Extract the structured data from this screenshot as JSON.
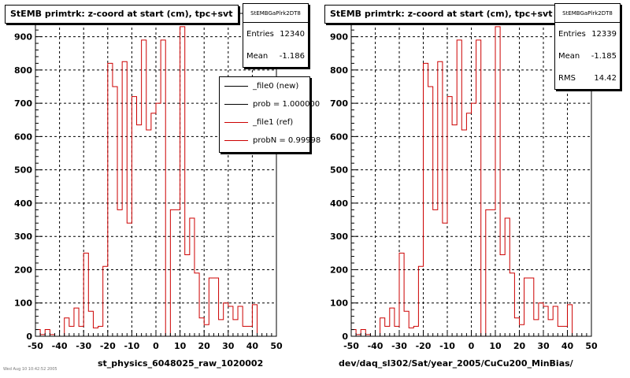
{
  "panels": [
    {
      "title": "StEMB primtrk: z-coord at start (cm), tpc+svt",
      "xlabel": "st_physics_6048025_raw_1020002",
      "stats": {
        "name": "StEMBGaPlrk2DT8",
        "rows": [
          {
            "label": "Entries",
            "value": "12340"
          },
          {
            "label": "Mean",
            "value": "-1.186"
          }
        ]
      },
      "legend": [
        {
          "label": "_file0 (new)",
          "color": "#000000"
        },
        {
          "label": "prob = 1.000000",
          "color": "#000000"
        },
        {
          "label": "_file1 (ref)",
          "color": "#cc0000"
        },
        {
          "label": "probN = 0.99998",
          "color": "#cc0000"
        }
      ]
    },
    {
      "title": "StEMB primtrk: z-coord at start (cm), tpc+svt",
      "xlabel": "dev/daq_sl302/Sat/year_2005/CuCu200_MinBias/",
      "stats": {
        "name": "StEMBGaPlrk2DT8",
        "rows": [
          {
            "label": "Entries",
            "value": "12339"
          },
          {
            "label": "Mean",
            "value": "-1.185"
          },
          {
            "label": "RMS",
            "value": "14.42"
          }
        ]
      },
      "legend": []
    }
  ],
  "footer_note": "Wed Aug 10 10:42:52 2005",
  "chart_data": [
    {
      "type": "histogram",
      "title": "StEMB primtrk: z-coord at start (cm), tpc+svt",
      "xlabel": "st_physics_6048025_raw_1020002",
      "xlim": [
        -50,
        50
      ],
      "ylim": [
        0,
        970
      ],
      "bin_width": 2,
      "xticks": [
        -50,
        -40,
        -30,
        -20,
        -10,
        0,
        10,
        20,
        30,
        40,
        50
      ],
      "yticks": [
        0,
        100,
        200,
        300,
        400,
        500,
        600,
        700,
        800,
        900
      ],
      "grid": true,
      "series": [
        {
          "name": "_file1 (ref)",
          "color": "#cc0000",
          "values": [
            20,
            5,
            20,
            5,
            0,
            0,
            55,
            30,
            85,
            30,
            250,
            75,
            25,
            30,
            210,
            820,
            750,
            380,
            825,
            340,
            720,
            635,
            890,
            620,
            670,
            700,
            890,
            0,
            380,
            380,
            930,
            245,
            355,
            190,
            55,
            35,
            175,
            175,
            50,
            100,
            90,
            50,
            90,
            30,
            30,
            95,
            0,
            0,
            0,
            0
          ]
        }
      ]
    },
    {
      "type": "histogram",
      "title": "StEMB primtrk: z-coord at start (cm), tpc+svt",
      "xlabel": "dev/daq_sl302/Sat/year_2005/CuCu200_MinBias/",
      "xlim": [
        -50,
        50
      ],
      "ylim": [
        0,
        970
      ],
      "bin_width": 2,
      "xticks": [
        -50,
        -40,
        -30,
        -20,
        -10,
        0,
        10,
        20,
        30,
        40,
        50
      ],
      "yticks": [
        0,
        100,
        200,
        300,
        400,
        500,
        600,
        700,
        800,
        900
      ],
      "grid": true,
      "series": [
        {
          "name": "",
          "color": "#cc0000",
          "values": [
            20,
            5,
            20,
            5,
            0,
            0,
            55,
            30,
            85,
            30,
            250,
            75,
            25,
            30,
            210,
            820,
            750,
            380,
            825,
            340,
            720,
            635,
            890,
            620,
            670,
            700,
            890,
            0,
            380,
            380,
            930,
            245,
            355,
            190,
            55,
            35,
            175,
            175,
            50,
            100,
            90,
            50,
            90,
            30,
            30,
            95,
            0,
            0,
            0,
            0
          ]
        }
      ]
    }
  ]
}
